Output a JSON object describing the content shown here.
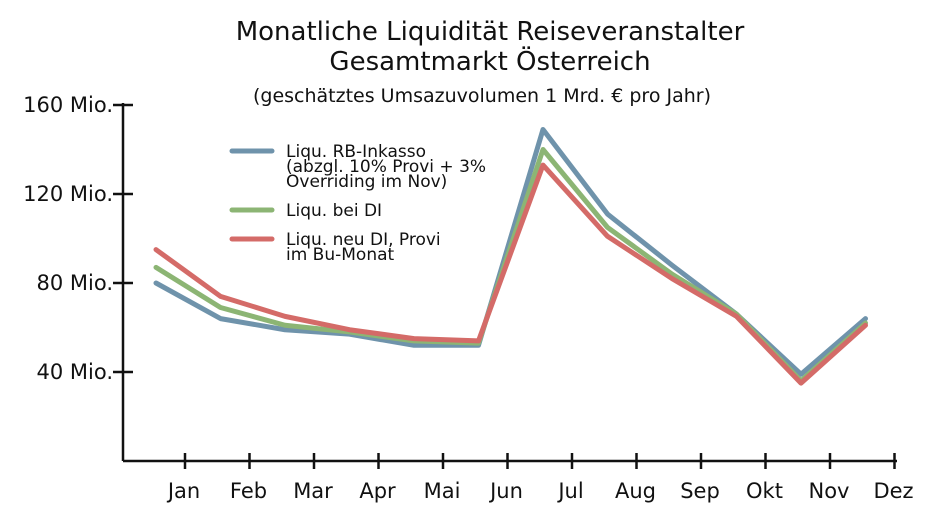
{
  "chart_data": {
    "type": "line",
    "title": "Monatliche Liquidität Reiseveranstalter",
    "title_line2": "Gesamtmarkt Österreich",
    "subtitle": "(geschätztes Umsazuvolumen 1 Mrd. € pro Jahr)",
    "categories": [
      "Jan",
      "Feb",
      "Mar",
      "Apr",
      "Mai",
      "Jun",
      "Jul",
      "Aug",
      "Sep",
      "Okt",
      "Nov",
      "Dez"
    ],
    "yticks": [
      "160 Mio.",
      "120 Mio.",
      "80 Mio.",
      "40 Mio."
    ],
    "ylim": [
      0,
      160
    ],
    "grid": false,
    "legend_position": "upper-left",
    "series": [
      {
        "name": "Liqu. RB-Inkasso (abzgl. 10% Provi + 3% Overriding im Nov)",
        "legend_lines": [
          "Liqu. RB-Inkasso",
          "(abzgl. 10% Provi + 3%",
          "Overriding im Nov)"
        ],
        "color": "#6f93ab",
        "values": [
          80,
          64,
          59,
          57,
          52,
          52,
          149,
          111,
          88,
          66,
          39,
          64
        ]
      },
      {
        "name": "Liqu. bei DI",
        "legend_lines": [
          "Liqu. bei DI"
        ],
        "color": "#8cb574",
        "values": [
          87,
          69,
          61,
          58,
          54,
          53,
          140,
          105,
          84,
          66,
          36,
          62
        ]
      },
      {
        "name": "Liqu. neu DI, Provi im Bu-Monat",
        "legend_lines": [
          "Liqu. neu DI, Provi",
          "im Bu-Monat"
        ],
        "color": "#d46b68",
        "values": [
          95,
          74,
          65,
          59,
          55,
          54,
          133,
          101,
          82,
          65,
          35,
          61
        ]
      }
    ]
  }
}
